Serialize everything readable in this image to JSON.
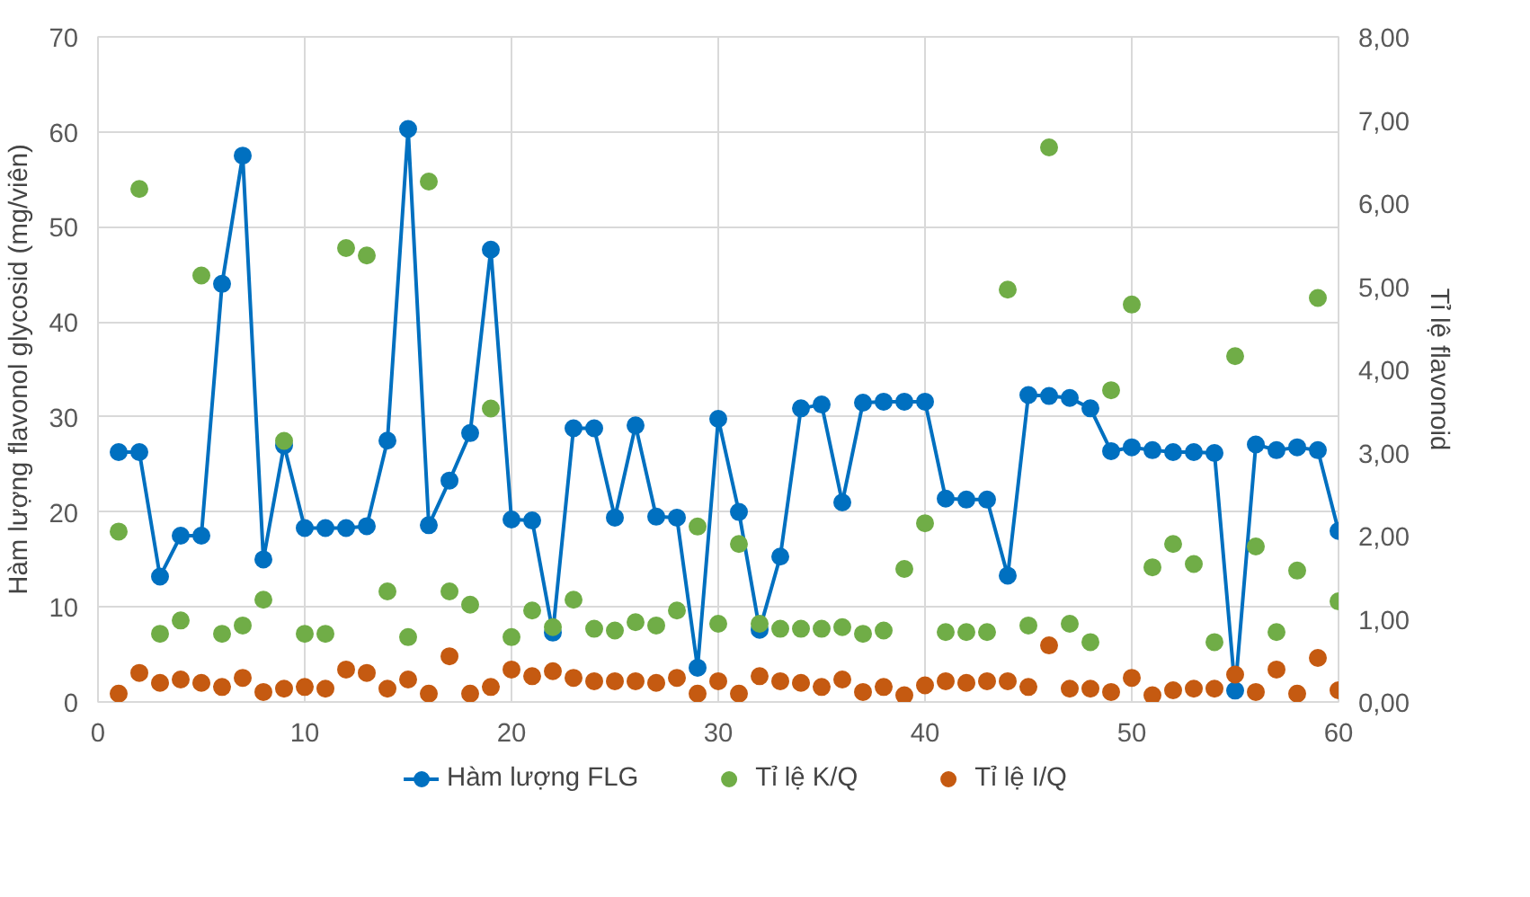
{
  "chart_data": {
    "type": "line",
    "ylabel": "Hàm lượng flavonol glycosid (mg/viên)",
    "y2label": "Tỉ lệ flavonoid",
    "x": [
      1,
      2,
      3,
      4,
      5,
      6,
      7,
      8,
      9,
      10,
      11,
      12,
      13,
      14,
      15,
      16,
      17,
      18,
      19,
      20,
      21,
      22,
      23,
      24,
      25,
      26,
      27,
      28,
      29,
      30,
      31,
      32,
      33,
      34,
      35,
      36,
      37,
      38,
      39,
      40,
      41,
      42,
      43,
      44,
      45,
      46,
      47,
      48,
      49,
      50,
      51,
      52,
      53,
      54,
      55,
      56,
      57,
      58,
      59,
      60
    ],
    "xlim": [
      0,
      60
    ],
    "xticks": [
      0,
      10,
      20,
      30,
      40,
      50,
      60
    ],
    "ylim": [
      0,
      70
    ],
    "yticks": [
      0,
      10,
      20,
      30,
      40,
      50,
      60,
      70
    ],
    "y2lim": [
      0,
      8
    ],
    "y2ticks": [
      {
        "value": 0,
        "label": "0,00"
      },
      {
        "value": 1,
        "label": "1,00"
      },
      {
        "value": 2,
        "label": "2,00"
      },
      {
        "value": 3,
        "label": "3,00"
      },
      {
        "value": 4,
        "label": "4,00"
      },
      {
        "value": 5,
        "label": "5,00"
      },
      {
        "value": 6,
        "label": "6,00"
      },
      {
        "value": 7,
        "label": "7,00"
      },
      {
        "value": 8,
        "label": "8,00"
      }
    ],
    "grid": true,
    "legend": "bottom",
    "marker": "circle",
    "line_style": "solid",
    "series": [
      {
        "name": "Hàm lượng FLG",
        "color": "#0070c0",
        "values": [
          26.3,
          26.3,
          13.2,
          17.5,
          17.5,
          44,
          57.5,
          15,
          27,
          18.3,
          18.3,
          18.3,
          18.5,
          27.5,
          60.3,
          18.6,
          23.3,
          28.3,
          47.6,
          19.2,
          19.1,
          7.3,
          28.8,
          28.8,
          19.4,
          29.1,
          19.5,
          19.4,
          3.6,
          29.8,
          20,
          7.6,
          15.3,
          30.9,
          31.3,
          21,
          31.5,
          31.6,
          31.6,
          31.6,
          21.4,
          21.3,
          21.3,
          13.3,
          32.3,
          32.2,
          32,
          30.9,
          26.4,
          26.8,
          26.5,
          26.3,
          26.3,
          26.2,
          1.2,
          27.1,
          26.5,
          26.8,
          26.5,
          18
        ]
      },
      {
        "name": "Tỉ lệ K/Q",
        "type": "scatter",
        "axis": "y2",
        "color": "#70ad47",
        "values": [
          2.05,
          6.17,
          0.82,
          0.98,
          5.13,
          0.82,
          0.92,
          1.23,
          3.14,
          0.82,
          0.82,
          5.46,
          5.37,
          1.33,
          0.78,
          6.26,
          1.33,
          1.17,
          3.53,
          0.78,
          1.1,
          0.9,
          1.23,
          0.88,
          0.86,
          0.96,
          0.92,
          1.1,
          2.11,
          0.94,
          1.9,
          0.94,
          0.88,
          0.88,
          0.88,
          0.9,
          0.82,
          0.86,
          1.6,
          2.15,
          0.84,
          0.84,
          0.84,
          4.96,
          0.92,
          6.67,
          0.94,
          0.72,
          3.75,
          4.78,
          1.62,
          1.9,
          1.66,
          0.72,
          4.16,
          1.87,
          0.84,
          1.58,
          4.86,
          1.21
        ]
      },
      {
        "name": "Tỉ lệ I/Q",
        "type": "scatter",
        "axis": "y2",
        "color": "#c55a11",
        "values": [
          0.1,
          0.35,
          0.23,
          0.27,
          0.23,
          0.18,
          0.29,
          0.12,
          0.16,
          0.18,
          0.16,
          0.39,
          0.35,
          0.16,
          0.27,
          0.1,
          0.55,
          0.1,
          0.18,
          0.39,
          0.31,
          0.37,
          0.29,
          0.25,
          0.25,
          0.25,
          0.23,
          0.29,
          0.1,
          0.25,
          0.1,
          0.31,
          0.25,
          0.23,
          0.18,
          0.27,
          0.12,
          0.18,
          0.08,
          0.2,
          0.25,
          0.23,
          0.25,
          0.25,
          0.18,
          0.68,
          0.16,
          0.16,
          0.12,
          0.29,
          0.08,
          0.14,
          0.16,
          0.16,
          0.33,
          0.12,
          0.39,
          0.1,
          0.53,
          0.14
        ]
      }
    ]
  }
}
